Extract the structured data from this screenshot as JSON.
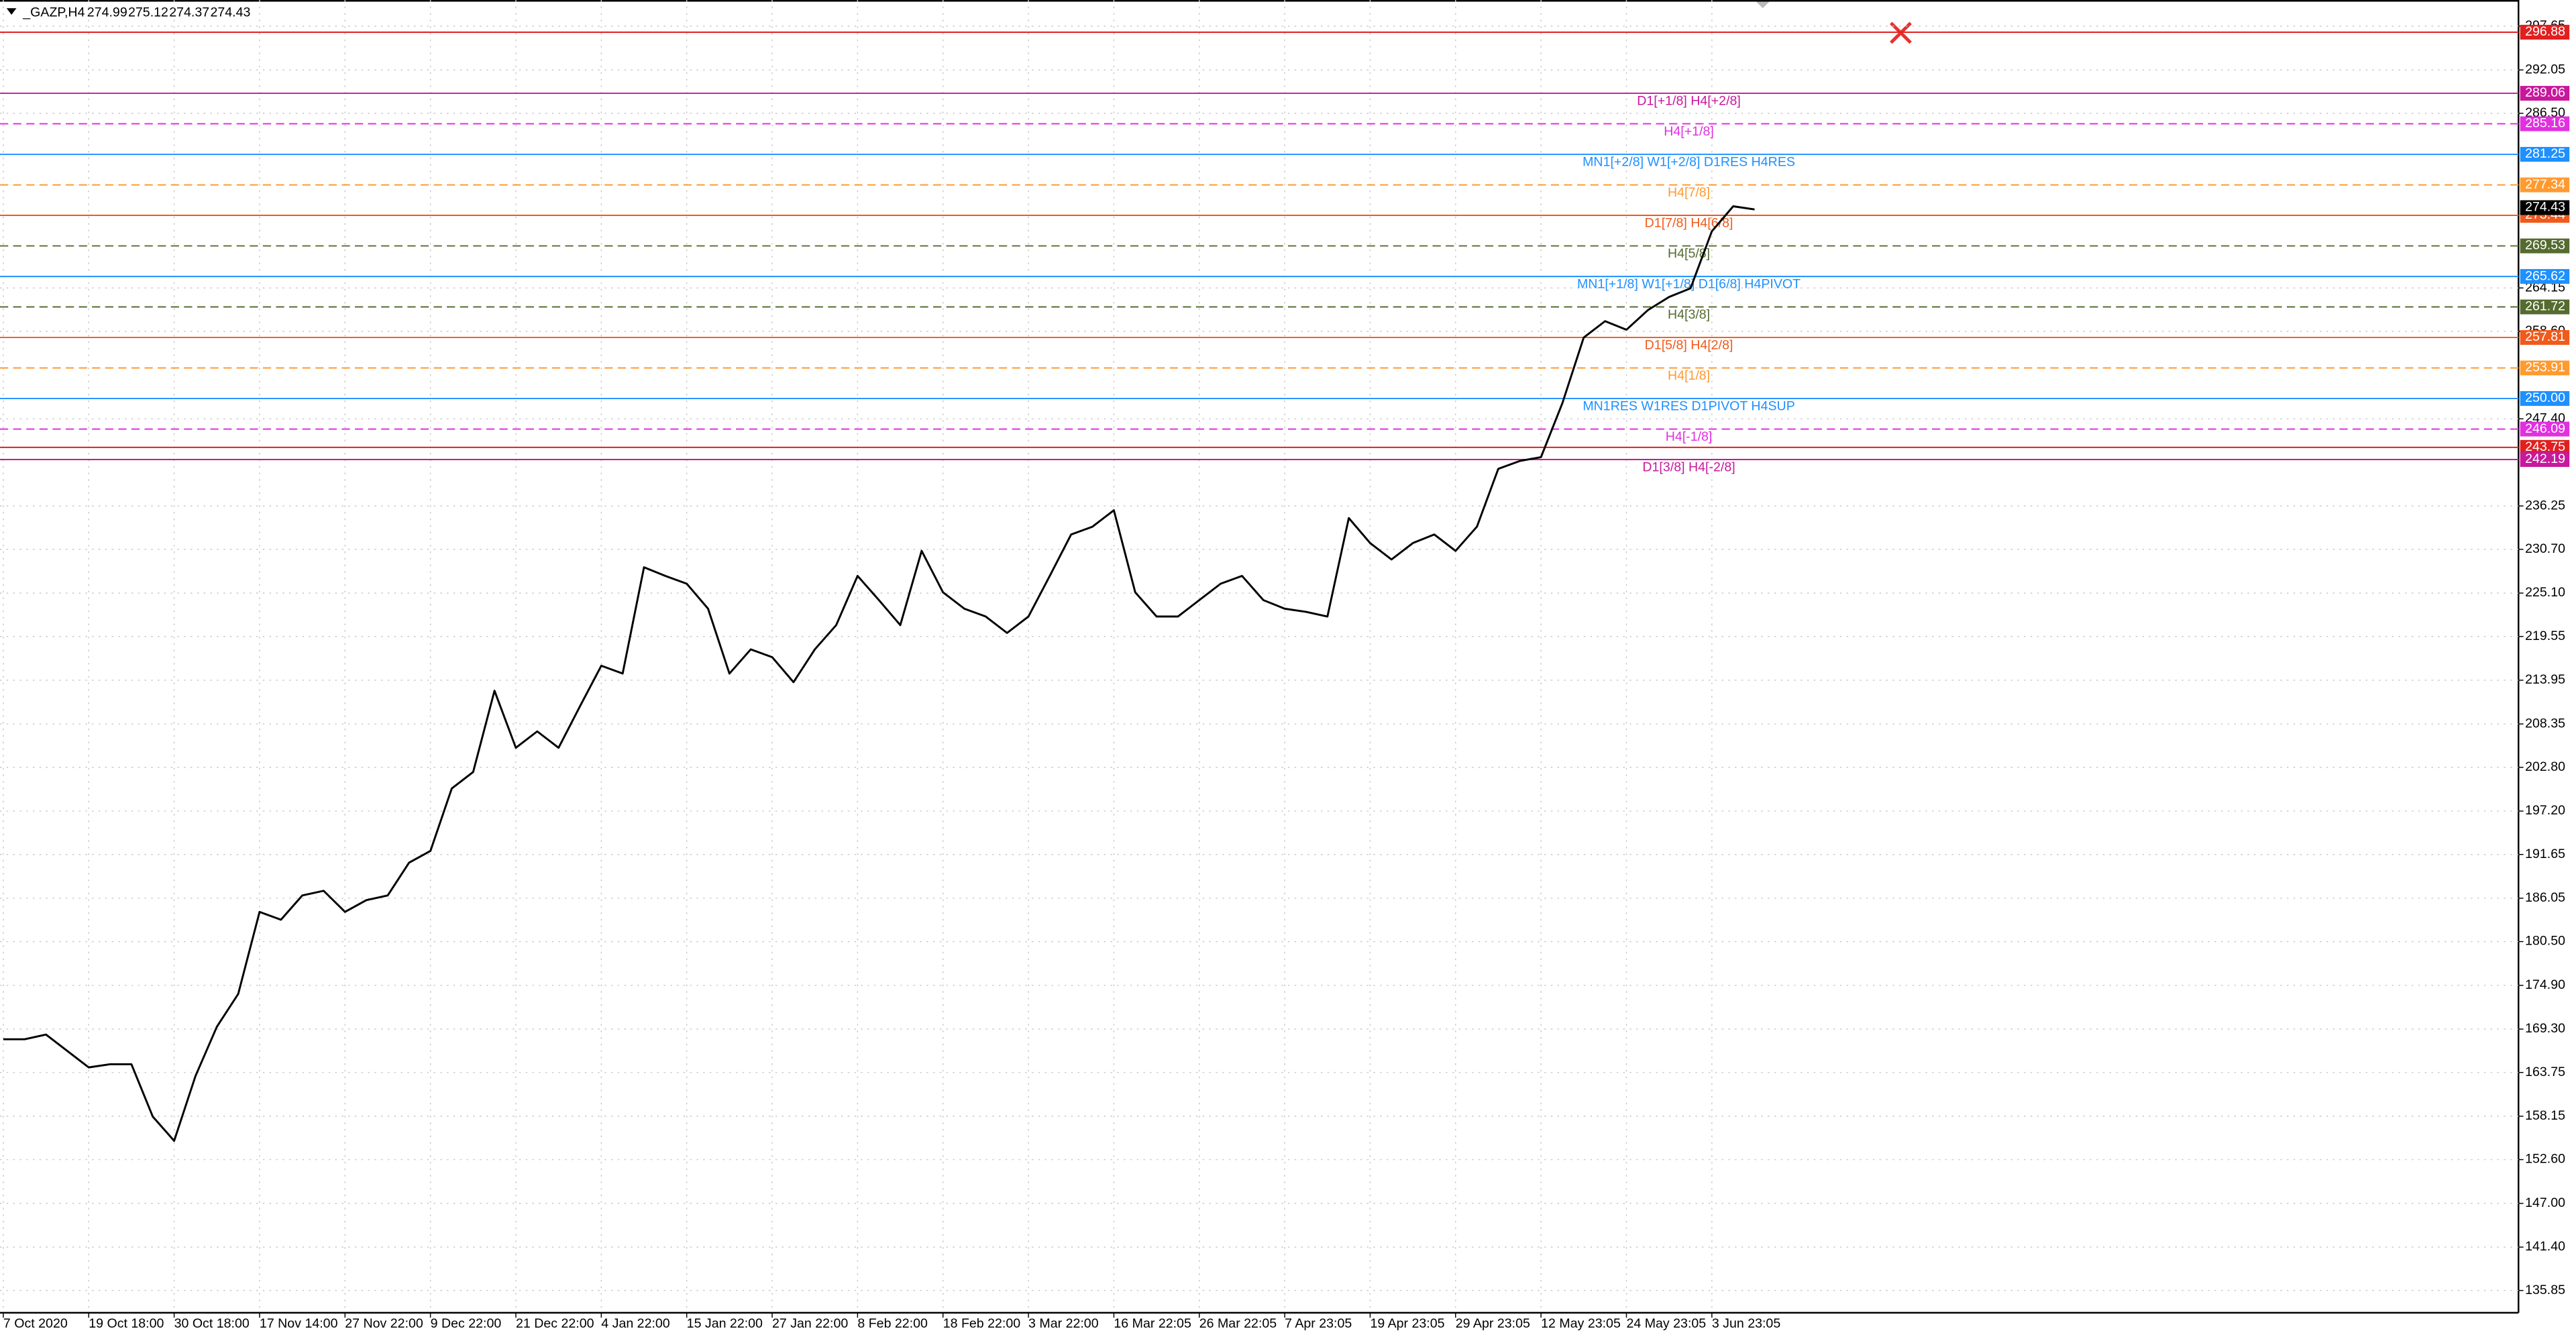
{
  "chart_data": {
    "type": "line",
    "title": "_GAZP,H4",
    "quote": [
      274.99,
      275.12,
      274.37,
      274.43
    ],
    "categories": [
      "7 Oct 2020",
      null,
      null,
      null,
      "19 Oct 18:00",
      null,
      null,
      null,
      "30 Oct 18:00",
      null,
      null,
      null,
      "17 Nov 14:00",
      null,
      null,
      null,
      "27 Nov 22:00",
      null,
      null,
      null,
      "9 Dec 22:00",
      null,
      null,
      null,
      "21 Dec 22:00",
      null,
      null,
      null,
      "4 Jan 22:00",
      null,
      null,
      null,
      "15 Jan 22:00",
      null,
      null,
      null,
      "27 Jan 22:00",
      null,
      null,
      null,
      "8 Feb 22:00",
      null,
      null,
      null,
      "18 Feb 22:00",
      null,
      null,
      null,
      "3 Mar 22:00",
      null,
      null,
      null,
      "16 Mar 22:05",
      null,
      null,
      null,
      "26 Mar 22:05",
      null,
      null,
      null,
      "7 Apr 23:05",
      null,
      null,
      null,
      "19 Apr 23:05",
      null,
      null,
      null,
      "29 Apr 23:05",
      null,
      null,
      null,
      "12 May 23:05",
      null,
      null,
      null,
      "24 May 23:05",
      null,
      null,
      null,
      "3 Jun 23:05",
      null,
      null
    ],
    "series": [
      {
        "color": "#000000",
        "values": [
          168.0,
          168.0,
          168.6,
          166.5,
          164.4,
          164.8,
          164.8,
          158.1,
          155.0,
          163.3,
          169.6,
          173.8,
          184.3,
          183.3,
          186.4,
          187.0,
          184.3,
          185.8,
          186.4,
          190.6,
          192.1,
          200.1,
          202.2,
          212.6,
          205.3,
          207.4,
          205.3,
          210.6,
          215.8,
          214.8,
          228.4,
          227.3,
          226.3,
          223.1,
          214.8,
          217.9,
          216.9,
          213.7,
          217.9,
          221.0,
          227.3,
          224.2,
          221.0,
          230.5,
          225.2,
          223.1,
          222.1,
          220.0,
          222.1,
          227.3,
          232.6,
          233.6,
          235.7,
          225.2,
          222.1,
          222.1,
          224.2,
          226.3,
          227.3,
          224.2,
          223.1,
          222.7,
          222.1,
          234.7,
          231.5,
          229.4,
          231.5,
          232.6,
          230.5,
          233.6,
          241.0,
          242.0,
          242.5,
          249.4,
          257.8,
          259.9,
          258.8,
          261.3,
          263.0,
          264.1,
          271.4,
          274.6,
          274.2
        ]
      }
    ],
    "ylim": [
      133.0,
      301.0
    ],
    "yticks": [
      297.65,
      292.05,
      {
        "value": 286.5,
        "label": "286.50"
      },
      264.15,
      {
        "value": 258.6,
        "label": "258.60"
      },
      {
        "value": 247.4,
        "label": "247.40"
      },
      236.25,
      {
        "value": 230.7,
        "label": "230.70"
      },
      {
        "value": 225.1,
        "label": "225.10"
      },
      219.55,
      213.95,
      208.35,
      {
        "value": 202.8,
        "label": "202.80"
      },
      {
        "value": 197.2,
        "label": "197.20"
      },
      191.65,
      186.05,
      {
        "value": 180.5,
        "label": "180.50"
      },
      {
        "value": 174.9,
        "label": "174.90"
      },
      {
        "value": 169.3,
        "label": "169.30"
      },
      163.75,
      158.15,
      {
        "value": 152.6,
        "label": "152.60"
      },
      {
        "value": 147,
        "label": "147.00"
      },
      {
        "value": 141.4,
        "label": "141.40"
      },
      135.85
    ],
    "grid": true,
    "levels": [
      {
        "value": 296.88,
        "color": "#e02020",
        "style": "solid"
      },
      {
        "value": 289.06,
        "name": "D1[+1/8] H4[+2/8]",
        "color": "#c8189c",
        "style": "solid"
      },
      {
        "value": 285.16,
        "name": "H4[+1/8]",
        "color": "#e030e0",
        "style": "dashed"
      },
      {
        "value": 281.25,
        "name": "MN1[+2/8] W1[+2/8] D1RES H4RES",
        "color": "#1e90ff",
        "style": "solid"
      },
      {
        "value": 277.34,
        "name": "H4[7/8]",
        "color": "#ff9a30",
        "style": "dashed"
      },
      {
        "value": 273.44,
        "name": "D1[7/8] H4[6/8]",
        "color": "#f05a1a",
        "style": "solid"
      },
      {
        "value": 269.53,
        "name": "H4[5/8]",
        "color": "#556b2f",
        "style": "dashed"
      },
      {
        "value": 265.62,
        "name": "MN1[+1/8] W1[+1/8] D1[6/8] H4PIVOT",
        "color": "#1e90ff",
        "style": "solid"
      },
      {
        "value": 261.72,
        "name": "H4[3/8]",
        "color": "#556b2f",
        "style": "dashed"
      },
      {
        "value": 257.81,
        "name": "D1[5/8] H4[2/8]",
        "color": "#f05a1a",
        "style": "solid"
      },
      {
        "value": 253.91,
        "name": "H4[1/8]",
        "color": "#ff9a30",
        "style": "dashed"
      },
      {
        "value": 250,
        "value_label": "250.00",
        "name": "MN1RES W1RES D1PIVOT H4SUP",
        "color": "#1e90ff",
        "style": "solid"
      },
      {
        "value": 246.09,
        "name": "H4[-1/8]",
        "color": "#e030e0",
        "style": "dashed"
      },
      {
        "value": 243.75,
        "color": "#e02020",
        "style": "solid"
      },
      {
        "value": 242.19,
        "name": "D1[3/8] H4[-2/8]",
        "color": "#c8189c",
        "style": "solid"
      }
    ]
  }
}
